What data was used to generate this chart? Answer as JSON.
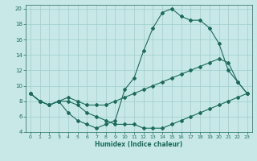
{
  "xlabel": "Humidex (Indice chaleur)",
  "ylabel": "",
  "xlim": [
    -0.5,
    23.5
  ],
  "ylim": [
    4,
    20.5
  ],
  "yticks": [
    4,
    6,
    8,
    10,
    12,
    14,
    16,
    18,
    20
  ],
  "xticks": [
    0,
    1,
    2,
    3,
    4,
    5,
    6,
    7,
    8,
    9,
    10,
    11,
    12,
    13,
    14,
    15,
    16,
    17,
    18,
    19,
    20,
    21,
    22,
    23
  ],
  "bg_color": "#c8e8e8",
  "grid_color": "#9ecece",
  "line_color": "#1a6b5a",
  "line1_x": [
    0,
    1,
    2,
    3,
    4,
    5,
    6,
    7,
    8,
    9,
    10,
    11,
    12,
    13,
    14,
    15,
    16,
    17,
    18,
    19,
    20,
    21,
    22,
    23
  ],
  "line1_y": [
    9,
    8,
    7.5,
    8,
    8.5,
    8,
    7.5,
    7.5,
    7.5,
    8,
    8.5,
    9,
    9.5,
    10,
    10.5,
    11,
    11.5,
    12,
    12.5,
    13,
    13.5,
    13,
    10.5,
    9
  ],
  "line2_x": [
    0,
    1,
    2,
    3,
    4,
    5,
    6,
    7,
    8,
    9,
    10,
    11,
    12,
    13,
    14,
    15,
    16,
    17,
    18,
    19,
    20,
    21,
    22,
    23
  ],
  "line2_y": [
    9,
    8,
    7.5,
    8,
    8,
    7.5,
    6.5,
    6,
    5.5,
    5,
    5,
    5,
    4.5,
    4.5,
    4.5,
    5,
    5.5,
    6,
    6.5,
    7,
    7.5,
    8,
    8.5,
    9
  ],
  "line3_x": [
    0,
    1,
    2,
    3,
    4,
    5,
    6,
    7,
    8,
    9,
    10,
    11,
    12,
    13,
    14,
    15,
    16,
    17,
    18,
    19,
    20,
    21,
    22,
    23
  ],
  "line3_y": [
    9,
    8,
    7.5,
    8,
    6.5,
    5.5,
    5,
    4.5,
    5,
    5.5,
    9.5,
    11,
    14.5,
    17.5,
    19.5,
    20,
    19,
    18.5,
    18.5,
    17.5,
    15.5,
    12,
    10.5,
    9
  ],
  "tick_fontsize": 4.5,
  "xlabel_fontsize": 5.5,
  "lw": 0.8,
  "ms": 2.0
}
